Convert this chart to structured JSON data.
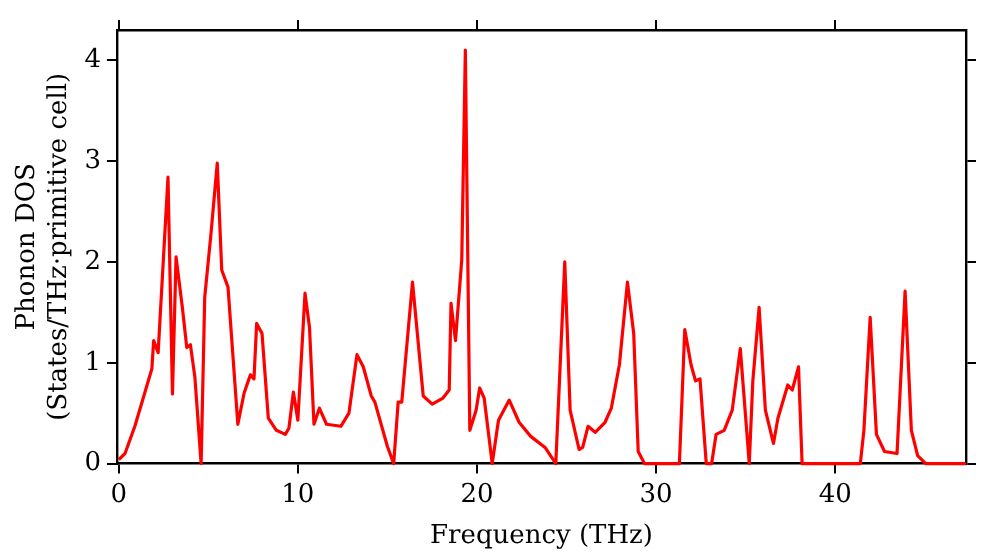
{
  "chart_data": {
    "type": "line",
    "xlabel": "Frequency (THz)",
    "ylabel": "Phonon DOS\n(States/THz·primitive cell)",
    "x": [
      0,
      0.35,
      0.9,
      1.5,
      1.85,
      1.95,
      2.2,
      2.75,
      3.0,
      3.2,
      3.55,
      3.8,
      4.0,
      4.25,
      4.6,
      4.8,
      5.15,
      5.5,
      5.75,
      6.1,
      6.65,
      7.0,
      7.35,
      7.55,
      7.7,
      8.0,
      8.35,
      8.8,
      9.3,
      9.5,
      9.75,
      10.0,
      10.4,
      10.65,
      10.9,
      11.2,
      11.6,
      12.4,
      12.85,
      13.3,
      13.65,
      14.1,
      14.3,
      15.0,
      15.35,
      15.6,
      15.8,
      16.4,
      17.0,
      17.5,
      18.1,
      18.45,
      18.55,
      18.8,
      19.15,
      19.35,
      19.6,
      19.95,
      20.15,
      20.4,
      20.85,
      21.2,
      21.8,
      22.35,
      23.0,
      23.8,
      24.4,
      24.9,
      25.2,
      25.7,
      25.9,
      26.2,
      26.6,
      27.15,
      27.5,
      27.95,
      28.4,
      28.75,
      29.0,
      29.35,
      31.3,
      31.6,
      31.95,
      32.2,
      32.45,
      32.8,
      33.1,
      33.35,
      33.8,
      34.25,
      34.7,
      35.2,
      35.4,
      35.75,
      36.1,
      36.55,
      36.8,
      37.35,
      37.6,
      37.95,
      38.15,
      41.4,
      41.6,
      41.95,
      42.3,
      42.75,
      43.45,
      43.9,
      44.25,
      44.6,
      45.05,
      47.3
    ],
    "series": [
      {
        "color": "#ff0000",
        "values": [
          0.04,
          0.1,
          0.37,
          0.73,
          0.94,
          1.22,
          1.1,
          2.84,
          0.69,
          2.05,
          1.55,
          1.15,
          1.18,
          0.86,
          0,
          1.65,
          2.28,
          2.98,
          1.92,
          1.75,
          0.39,
          0.7,
          0.88,
          0.84,
          1.39,
          1.29,
          0.45,
          0.33,
          0.29,
          0.35,
          0.71,
          0.43,
          1.69,
          1.35,
          0.39,
          0.55,
          0.39,
          0.37,
          0.5,
          1.08,
          0.96,
          0.67,
          0.61,
          0.17,
          0,
          0.61,
          0.61,
          1.8,
          0.67,
          0.59,
          0.65,
          0.73,
          1.59,
          1.22,
          2.02,
          4.1,
          0.33,
          0.53,
          0.75,
          0.65,
          0,
          0.43,
          0.63,
          0.41,
          0.27,
          0.16,
          0,
          2.0,
          0.53,
          0.14,
          0.16,
          0.37,
          0.31,
          0.41,
          0.55,
          0.98,
          1.8,
          1.29,
          0.12,
          0,
          0,
          1.33,
          0.98,
          0.82,
          0.84,
          0,
          0,
          0.29,
          0.33,
          0.53,
          1.14,
          0,
          0.82,
          1.55,
          0.53,
          0.2,
          0.45,
          0.78,
          0.73,
          0.96,
          0,
          0,
          0.33,
          1.45,
          0.29,
          0.12,
          0.1,
          1.71,
          0.33,
          0.08,
          0,
          0
        ]
      }
    ],
    "xlim": [
      -0.1,
      47.3
    ],
    "ylim": [
      0,
      4.3
    ],
    "xticks": [
      0,
      10,
      20,
      30,
      40
    ],
    "yticks": [
      0,
      1,
      2,
      3,
      4
    ],
    "grid": false,
    "legend": false,
    "marker": "none",
    "line_style": "solid"
  }
}
